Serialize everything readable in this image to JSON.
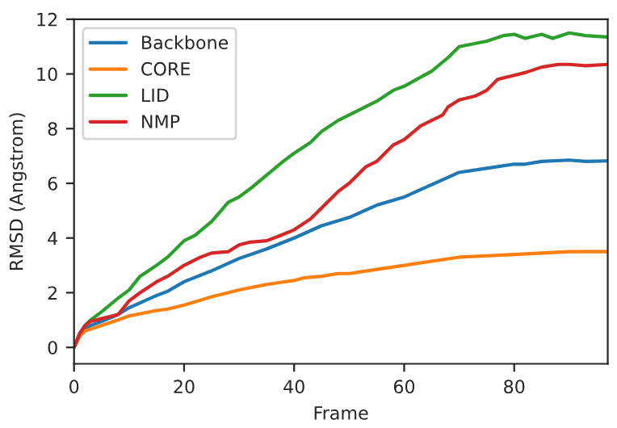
{
  "chart_data": {
    "type": "line",
    "xlabel": "Frame",
    "ylabel": "RMSD (Angstrom)",
    "xlim": [
      0,
      97
    ],
    "ylim": [
      -0.6,
      12
    ],
    "xticks": [
      0,
      20,
      40,
      60,
      80
    ],
    "yticks": [
      0,
      2,
      4,
      6,
      8,
      10,
      12
    ],
    "legend": "top left",
    "grid": false,
    "series": [
      {
        "name": "Backbone",
        "color": "#1f77b4",
        "x": [
          0,
          1,
          2,
          3,
          5,
          8,
          10,
          15,
          17,
          20,
          25,
          30,
          35,
          40,
          45,
          50,
          55,
          60,
          65,
          70,
          75,
          80,
          82,
          85,
          90,
          93,
          97
        ],
        "values": [
          0,
          0.4,
          0.65,
          0.8,
          0.95,
          1.2,
          1.45,
          1.9,
          2.05,
          2.4,
          2.8,
          3.25,
          3.6,
          4.0,
          4.45,
          4.75,
          5.2,
          5.5,
          5.95,
          6.4,
          6.55,
          6.7,
          6.7,
          6.8,
          6.85,
          6.8,
          6.82
        ]
      },
      {
        "name": "CORE",
        "color": "#ff7f0e",
        "x": [
          0,
          1,
          2,
          5,
          8,
          10,
          15,
          17,
          20,
          25,
          28,
          30,
          35,
          40,
          42,
          45,
          48,
          50,
          55,
          60,
          65,
          70,
          75,
          80,
          85,
          90,
          97
        ],
        "values": [
          0,
          0.4,
          0.6,
          0.8,
          1.0,
          1.15,
          1.35,
          1.4,
          1.55,
          1.85,
          2.0,
          2.1,
          2.3,
          2.45,
          2.55,
          2.6,
          2.7,
          2.7,
          2.85,
          3.0,
          3.15,
          3.3,
          3.35,
          3.4,
          3.45,
          3.5,
          3.5
        ]
      },
      {
        "name": "LID",
        "color": "#2ca02c",
        "x": [
          0,
          1,
          2,
          3,
          5,
          8,
          10,
          12,
          15,
          17,
          20,
          22,
          25,
          28,
          30,
          32,
          35,
          38,
          40,
          43,
          45,
          48,
          50,
          55,
          58,
          60,
          65,
          68,
          70,
          75,
          78,
          80,
          82,
          85,
          87,
          90,
          93,
          97
        ],
        "values": [
          0,
          0.5,
          0.8,
          1.0,
          1.3,
          1.8,
          2.1,
          2.6,
          3.0,
          3.3,
          3.9,
          4.1,
          4.6,
          5.3,
          5.5,
          5.8,
          6.3,
          6.8,
          7.1,
          7.5,
          7.9,
          8.3,
          8.5,
          9.0,
          9.4,
          9.55,
          10.1,
          10.6,
          11.0,
          11.2,
          11.4,
          11.45,
          11.3,
          11.45,
          11.3,
          11.5,
          11.4,
          11.35
        ]
      },
      {
        "name": "NMP",
        "color": "#d62728",
        "x": [
          0,
          1,
          2,
          3,
          5,
          8,
          10,
          12,
          15,
          17,
          20,
          23,
          25,
          28,
          30,
          32,
          35,
          37,
          40,
          43,
          45,
          48,
          50,
          53,
          55,
          58,
          60,
          63,
          65,
          67,
          68,
          70,
          73,
          75,
          77,
          80,
          82,
          85,
          88,
          90,
          93,
          97
        ],
        "values": [
          0,
          0.5,
          0.8,
          0.95,
          1.05,
          1.2,
          1.7,
          2.0,
          2.4,
          2.6,
          3.0,
          3.3,
          3.45,
          3.5,
          3.75,
          3.85,
          3.9,
          4.05,
          4.3,
          4.7,
          5.1,
          5.7,
          6.0,
          6.6,
          6.8,
          7.4,
          7.6,
          8.1,
          8.3,
          8.5,
          8.8,
          9.05,
          9.2,
          9.4,
          9.8,
          9.95,
          10.05,
          10.25,
          10.35,
          10.35,
          10.3,
          10.35
        ]
      }
    ]
  }
}
